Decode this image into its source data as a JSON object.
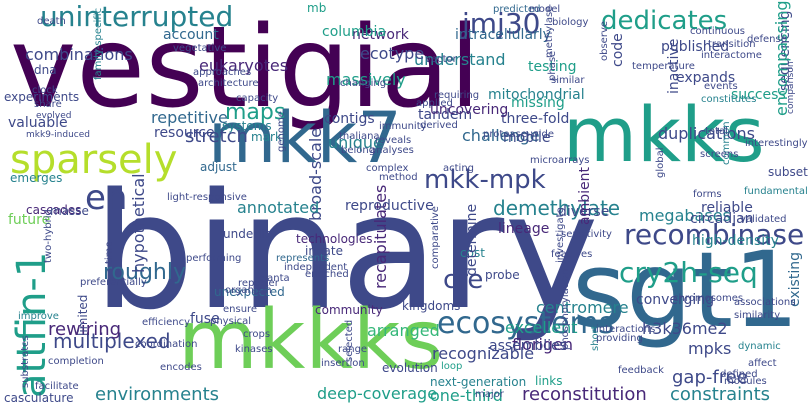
{
  "palette": {
    "deep_purple": "#440154",
    "purple": "#482878",
    "indigo": "#3e4989",
    "blue": "#31688e",
    "teal_blue": "#26828e",
    "teal": "#1f9e89",
    "green": "#35b779",
    "light_green": "#6ece58",
    "lime": "#b5de2b",
    "yellow": "#fde725"
  },
  "words": [
    "vestigial",
    "binary",
    "mkk7",
    "mkks",
    "mkkks",
    "sgt1",
    "uninterrupted",
    "jmj30",
    "dedicates",
    "sparsely",
    "attfin-1",
    "en",
    "mkk-mpk",
    "recombinase",
    "cry2h-seq",
    "ecosystems",
    "multiplexed",
    "rewiring",
    "roughly",
    "cre",
    "h3k36me2",
    "florigen",
    "excellent",
    "environments",
    "deep-coverage",
    "gap-free",
    "mpks",
    "reconstitution",
    "constraints",
    "one-third",
    "arranged",
    "recognizable",
    "stretch",
    "repetitive",
    "resource",
    "maps",
    "massively",
    "combinations",
    "eukaryotes",
    "contigs",
    "tandem",
    "demethylate",
    "megabases",
    "duplications",
    "three-fold",
    "challenge",
    "hypothetical",
    "broad-scale",
    "recapitulates",
    "reproductive",
    "centromere",
    "converging",
    "high-density",
    "circadian",
    "reliable",
    "expands",
    "sequencing",
    "encompassing",
    "success",
    "intracellularly",
    "published",
    "code",
    "inactive",
    "testing",
    "uncovering",
    "missing",
    "mitochondrial",
    "mobile",
    "diverse",
    "lineage",
    "innate",
    "technologies",
    "fuse",
    "community",
    "probe",
    "kingdoms",
    "cost",
    "annotated",
    "adjust",
    "mark",
    "systems",
    "valuable",
    "emerges",
    "cascades",
    "future",
    "masse",
    "underlie",
    "unique",
    "understand",
    "network",
    "account",
    "columbia",
    "ecotype",
    "predicted",
    "mb",
    "dna",
    "subset",
    "fundamental",
    "existing",
    "assemblies",
    "casculature",
    "next-generation",
    "limited",
    "improve",
    "unexpected",
    "determine",
    "ambient",
    "experiments",
    "family-specific",
    "mkk9-induced",
    "evolved",
    "performing",
    "represents",
    "comparative",
    "features",
    "insertion",
    "range",
    "loop",
    "links",
    "phosphorylation",
    "short",
    "providing",
    "evolution",
    "encodes",
    "facilitate",
    "completion",
    "coordination",
    "efficiency",
    "kinases",
    "crops",
    "physical",
    "ensure",
    "organism",
    "planta",
    "reporter",
    "enriched",
    "independent",
    "selected",
    "investigate",
    "interactions",
    "major",
    "defined",
    "affect",
    "modules",
    "similarity",
    "feedback",
    "dynamic",
    "associations",
    "chromosomes",
    "validated",
    "forms",
    "sensitivity",
    "global",
    "microarrays",
    "common",
    "screens",
    "total",
    "protease-wide",
    "interestingly",
    "comparison",
    "events",
    "constitutes",
    "transition",
    "interactome",
    "continuous",
    "defense",
    "biology",
    "model",
    "death",
    "vegetative",
    "similar",
    "phase",
    "observe",
    "applied",
    "requiring",
    "changing",
    "capacity",
    "architecture",
    "approaches",
    "share",
    "clock",
    "vector",
    "methylase",
    "temperature",
    "derived",
    "thaliana",
    "belong",
    "reveals",
    "immunity",
    "analyses",
    "complex",
    "method",
    "acting",
    "genome",
    "light-responsive",
    "two-hybrid",
    "time",
    "preferentially",
    "substrates"
  ]
}
